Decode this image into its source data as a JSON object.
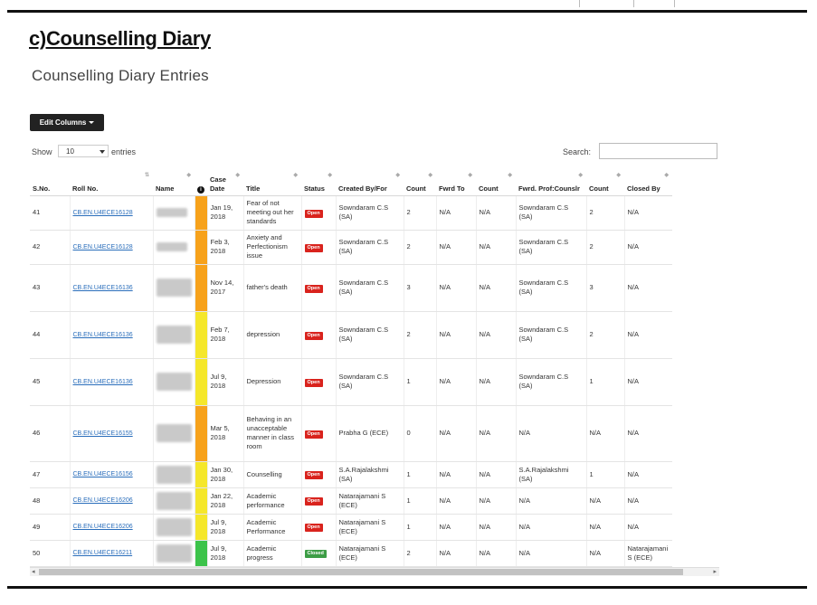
{
  "document_heading": "c)Counselling Diary",
  "panel_title": "Counselling Diary Entries",
  "toolbar": {
    "edit_columns_label": "Edit Columns"
  },
  "length_control": {
    "show_label": "Show",
    "selected": "10",
    "entries_label": "entries"
  },
  "search": {
    "label": "Search:",
    "value": ""
  },
  "colors": {
    "orange": "#f7a21b",
    "yellow": "#f5e72a",
    "green": "#3cc34a",
    "open_badge": "#d9231d",
    "closed_badge": "#3c9d45",
    "link": "#2a6ebb"
  },
  "table": {
    "columns": [
      "S.No.",
      "Roll No.",
      "Name",
      "",
      "Case Date",
      "Title",
      "Status",
      "Created By/For",
      "Count",
      "Fwrd To",
      "Count",
      "Fwrd. Prof:Counslr",
      "Count",
      "Closed By"
    ],
    "rows": [
      {
        "sno": "41",
        "roll": "CB.EN.U4ECE16128",
        "name": "Mohana V",
        "severity": "orange",
        "case_date": "Jan 19, 2018",
        "title": "Fear of not meeting out her standards",
        "status": "Open",
        "created": "Sowndaram C.S (SA)",
        "count1": "2",
        "fwrd_to": "N/A",
        "count2": "N/A",
        "fwrd_prof": "Sowndaram C.S (SA)",
        "count3": "2",
        "closed_by": "N/A"
      },
      {
        "sno": "42",
        "roll": "CB.EN.U4ECE16128",
        "name": "Mohana V",
        "severity": "orange",
        "case_date": "Feb 3, 2018",
        "title": "Anxiety and Perfectionism issue",
        "status": "Open",
        "created": "Sowndaram C.S (SA)",
        "count1": "2",
        "fwrd_to": "N/A",
        "count2": "N/A",
        "fwrd_prof": "Sowndaram C.S (SA)",
        "count3": "2",
        "closed_by": "N/A"
      },
      {
        "sno": "43",
        "roll": "CB.EN.U4ECE16136",
        "name": "Pon Nithya Kumar S",
        "severity": "orange",
        "case_date": "Nov 14, 2017",
        "title": "father's death",
        "status": "Open",
        "created": "Sowndaram C.S (SA)",
        "count1": "3",
        "fwrd_to": "N/A",
        "count2": "N/A",
        "fwrd_prof": "Sowndaram C.S (SA)",
        "count3": "3",
        "closed_by": "N/A"
      },
      {
        "sno": "44",
        "roll": "CB.EN.U4ECE16136",
        "name": "Pon Nithya Kumar S",
        "severity": "yellow",
        "case_date": "Feb 7, 2018",
        "title": "depression",
        "status": "Open",
        "created": "Sowndaram C.S (SA)",
        "count1": "2",
        "fwrd_to": "N/A",
        "count2": "N/A",
        "fwrd_prof": "Sowndaram C.S (SA)",
        "count3": "2",
        "closed_by": "N/A"
      },
      {
        "sno": "45",
        "roll": "CB.EN.U4ECE16136",
        "name": "Pon Nithya Kumar S",
        "severity": "yellow",
        "case_date": "Jul 9, 2018",
        "title": "Depression",
        "status": "Open",
        "created": "Sowndaram C.S (SA)",
        "count1": "1",
        "fwrd_to": "N/A",
        "count2": "N/A",
        "fwrd_prof": "Sowndaram C.S (SA)",
        "count3": "1",
        "closed_by": "N/A"
      },
      {
        "sno": "46",
        "roll": "CB.EN.U4ECE16155",
        "name": "Sushil Manoj",
        "severity": "orange",
        "case_date": "Mar 5, 2018",
        "title": "Behaving in an unacceptable manner in class room",
        "status": "Open",
        "created": "Prabha G (ECE)",
        "count1": "0",
        "fwrd_to": "N/A",
        "count2": "N/A",
        "fwrd_prof": "N/A",
        "count3": "N/A",
        "closed_by": "N/A"
      },
      {
        "sno": "47",
        "roll": "CB.EN.U4ECE16156",
        "name": "Swathika A S",
        "severity": "yellow",
        "case_date": "Jan 30, 2018",
        "title": "Counselling",
        "status": "Open",
        "created": "S.A.Rajalakshmi (SA)",
        "count1": "1",
        "fwrd_to": "N/A",
        "count2": "N/A",
        "fwrd_prof": "S.A.Rajalakshmi (SA)",
        "count3": "1",
        "closed_by": "N/A"
      },
      {
        "sno": "48",
        "roll": "CB.EN.U4ECE16206",
        "name": "Amit Kumar",
        "severity": "yellow",
        "case_date": "Jan 22, 2018",
        "title": "Academic performance",
        "status": "Open",
        "created": "Natarajamani S (ECE)",
        "count1": "1",
        "fwrd_to": "N/A",
        "count2": "N/A",
        "fwrd_prof": "N/A",
        "count3": "N/A",
        "closed_by": "N/A"
      },
      {
        "sno": "49",
        "roll": "CB.EN.U4ECE16206",
        "name": "Amit Kumar",
        "severity": "yellow",
        "case_date": "Jul 9, 2018",
        "title": "Academic Performance",
        "status": "Open",
        "created": "Natarajamani S (ECE)",
        "count1": "1",
        "fwrd_to": "N/A",
        "count2": "N/A",
        "fwrd_prof": "N/A",
        "count3": "N/A",
        "closed_by": "N/A"
      },
      {
        "sno": "50",
        "roll": "CB.EN.U4ECE16211",
        "name": "Akash Varun R",
        "severity": "green",
        "case_date": "Jul 9, 2018",
        "title": "Academic progress",
        "status": "Closed",
        "created": "Natarajamani S (ECE)",
        "count1": "2",
        "fwrd_to": "N/A",
        "count2": "N/A",
        "fwrd_prof": "N/A",
        "count3": "N/A",
        "closed_by": "Natarajamani S (ECE)"
      }
    ]
  }
}
